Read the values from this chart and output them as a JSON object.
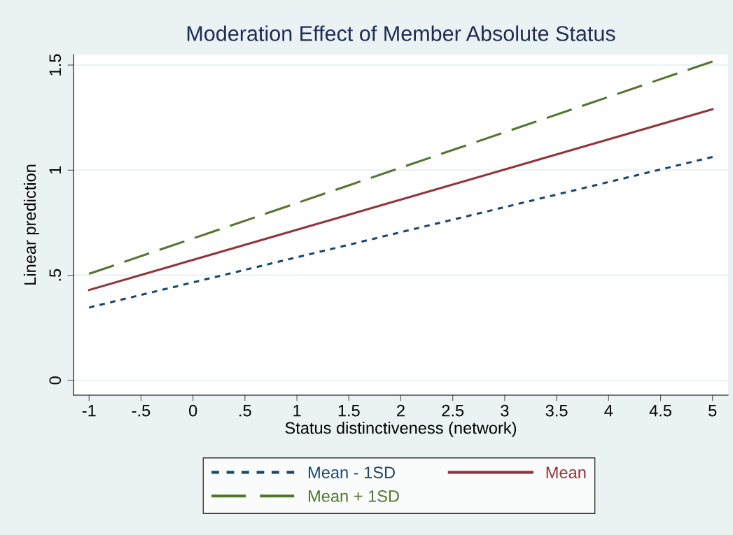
{
  "chart_data": {
    "type": "line",
    "title": "Moderation Effect of Member Absolute Status",
    "xlabel": "Status distinctiveness (network)",
    "ylabel": "Linear prediction",
    "x": [
      -1,
      5
    ],
    "series": [
      {
        "name": "Mean - 1SD",
        "color": "#1a476f",
        "line_style": "dotted",
        "values": [
          0.347,
          1.063
        ]
      },
      {
        "name": "Mean",
        "color": "#90353b",
        "line_style": "solid",
        "values": [
          0.43,
          1.29
        ]
      },
      {
        "name": "Mean + 1SD",
        "color": "#55752f",
        "line_style": "dashed",
        "values": [
          0.507,
          1.517
        ]
      }
    ],
    "xlim": [
      -1.15,
      5.15
    ],
    "ylim": [
      -0.07,
      1.55
    ],
    "xticks": [
      -1,
      {
        "value": -0.5,
        "label": "-.5"
      },
      0,
      {
        "value": 0.5,
        "label": ".5"
      },
      1,
      1.5,
      2,
      2.5,
      3,
      3.5,
      4,
      4.5,
      5
    ],
    "yticks": [
      0,
      {
        "value": 0.5,
        "label": ".5"
      },
      1,
      1.5
    ],
    "grid": "y",
    "legend": "bottom",
    "marker": "none"
  }
}
